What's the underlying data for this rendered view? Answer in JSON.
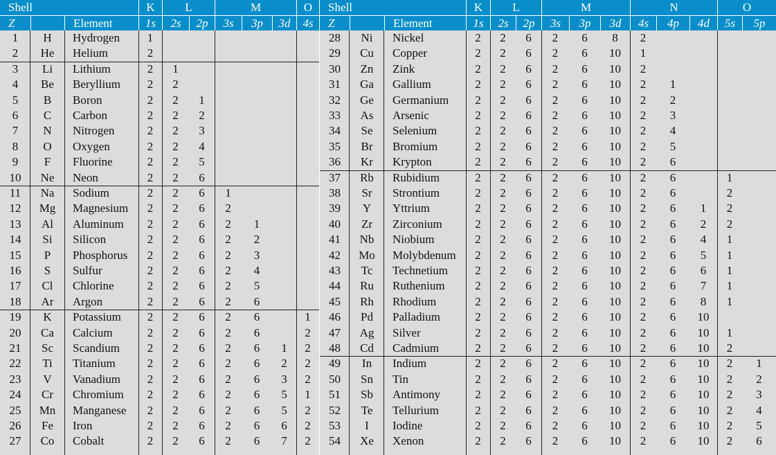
{
  "left": {
    "header_top": [
      "Shell",
      "K",
      "L",
      "M",
      "O"
    ],
    "header_sub": [
      "Z",
      "",
      "Element",
      "1s",
      "2s",
      "2p",
      "3s",
      "3p",
      "3d",
      "4s"
    ],
    "rows": [
      [
        "1",
        "H",
        "Hydrogen",
        "1",
        "",
        "",
        "",
        "",
        "",
        ""
      ],
      [
        "2",
        "He",
        "Helium",
        "2",
        "",
        "",
        "",
        "",
        "",
        ""
      ],
      [
        "3",
        "Li",
        "Lithium",
        "2",
        "1",
        "",
        "",
        "",
        "",
        ""
      ],
      [
        "4",
        "Be",
        "Beryllium",
        "2",
        "2",
        "",
        "",
        "",
        "",
        ""
      ],
      [
        "5",
        "B",
        "Boron",
        "2",
        "2",
        "1",
        "",
        "",
        "",
        ""
      ],
      [
        "6",
        "C",
        "Carbon",
        "2",
        "2",
        "2",
        "",
        "",
        "",
        ""
      ],
      [
        "7",
        "N",
        "Nitrogen",
        "2",
        "2",
        "3",
        "",
        "",
        "",
        ""
      ],
      [
        "8",
        "O",
        "Oxygen",
        "2",
        "2",
        "4",
        "",
        "",
        "",
        ""
      ],
      [
        "9",
        "F",
        "Fluorine",
        "2",
        "2",
        "5",
        "",
        "",
        "",
        ""
      ],
      [
        "10",
        "Ne",
        "Neon",
        "2",
        "2",
        "6",
        "",
        "",
        "",
        ""
      ],
      [
        "11",
        "Na",
        "Sodium",
        "2",
        "2",
        "6",
        "1",
        "",
        "",
        ""
      ],
      [
        "12",
        "Mg",
        "Magnesium",
        "2",
        "2",
        "6",
        "2",
        "",
        "",
        ""
      ],
      [
        "13",
        "Al",
        "Aluminum",
        "2",
        "2",
        "6",
        "2",
        "1",
        "",
        ""
      ],
      [
        "14",
        "Si",
        "Silicon",
        "2",
        "2",
        "6",
        "2",
        "2",
        "",
        ""
      ],
      [
        "15",
        "P",
        "Phosphorus",
        "2",
        "2",
        "6",
        "2",
        "3",
        "",
        ""
      ],
      [
        "16",
        "S",
        "Sulfur",
        "2",
        "2",
        "6",
        "2",
        "4",
        "",
        ""
      ],
      [
        "17",
        "Cl",
        "Chlorine",
        "2",
        "2",
        "6",
        "2",
        "5",
        "",
        ""
      ],
      [
        "18",
        "Ar",
        "Argon",
        "2",
        "2",
        "6",
        "2",
        "6",
        "",
        ""
      ],
      [
        "19",
        "K",
        "Potassium",
        "2",
        "2",
        "6",
        "2",
        "6",
        "",
        "1"
      ],
      [
        "20",
        "Ca",
        "Calcium",
        "2",
        "2",
        "6",
        "2",
        "6",
        "",
        "2"
      ],
      [
        "21",
        "Sc",
        "Scandium",
        "2",
        "2",
        "6",
        "2",
        "6",
        "1",
        "2"
      ],
      [
        "22",
        "Ti",
        "Titanium",
        "2",
        "2",
        "6",
        "2",
        "6",
        "2",
        "2"
      ],
      [
        "23",
        "V",
        "Vanadium",
        "2",
        "2",
        "6",
        "2",
        "6",
        "3",
        "2"
      ],
      [
        "24",
        "Cr",
        "Chromium",
        "2",
        "2",
        "6",
        "2",
        "6",
        "5",
        "1"
      ],
      [
        "25",
        "Mn",
        "Manganese",
        "2",
        "2",
        "6",
        "2",
        "6",
        "5",
        "2"
      ],
      [
        "26",
        "Fe",
        "Iron",
        "2",
        "2",
        "6",
        "2",
        "6",
        "6",
        "2"
      ],
      [
        "27",
        "Co",
        "Cobalt",
        "2",
        "2",
        "6",
        "2",
        "6",
        "7",
        "2"
      ]
    ]
  },
  "right": {
    "header_top": [
      "Shell",
      "K",
      "L",
      "M",
      "N",
      "O"
    ],
    "header_sub": [
      "Z",
      "",
      "Element",
      "1s",
      "2s",
      "2p",
      "3s",
      "3p",
      "3d",
      "4s",
      "4p",
      "4d",
      "5s",
      "5p"
    ],
    "rows": [
      [
        "28",
        "Ni",
        "Nickel",
        "2",
        "2",
        "6",
        "2",
        "6",
        "8",
        "2",
        "",
        "",
        "",
        ""
      ],
      [
        "29",
        "Cu",
        "Copper",
        "2",
        "2",
        "6",
        "2",
        "6",
        "10",
        "1",
        "",
        "",
        "",
        ""
      ],
      [
        "30",
        "Zn",
        "Zink",
        "2",
        "2",
        "6",
        "2",
        "6",
        "10",
        "2",
        "",
        "",
        "",
        ""
      ],
      [
        "31",
        "Ga",
        "Gallium",
        "2",
        "2",
        "6",
        "2",
        "6",
        "10",
        "2",
        "1",
        "",
        "",
        ""
      ],
      [
        "32",
        "Ge",
        "Germanium",
        "2",
        "2",
        "6",
        "2",
        "6",
        "10",
        "2",
        "2",
        "",
        "",
        ""
      ],
      [
        "33",
        "As",
        "Arsenic",
        "2",
        "2",
        "6",
        "2",
        "6",
        "10",
        "2",
        "3",
        "",
        "",
        ""
      ],
      [
        "34",
        "Se",
        "Selenium",
        "2",
        "2",
        "6",
        "2",
        "6",
        "10",
        "2",
        "4",
        "",
        "",
        ""
      ],
      [
        "35",
        "Br",
        "Bromium",
        "2",
        "2",
        "6",
        "2",
        "6",
        "10",
        "2",
        "5",
        "",
        "",
        ""
      ],
      [
        "36",
        "Kr",
        "Krypton",
        "2",
        "2",
        "6",
        "2",
        "6",
        "10",
        "2",
        "6",
        "",
        "",
        ""
      ],
      [
        "37",
        "Rb",
        "Rubidium",
        "2",
        "2",
        "6",
        "2",
        "6",
        "10",
        "2",
        "6",
        "",
        "1",
        ""
      ],
      [
        "38",
        "Sr",
        "Strontium",
        "2",
        "2",
        "6",
        "2",
        "6",
        "10",
        "2",
        "6",
        "",
        "2",
        ""
      ],
      [
        "39",
        "Y",
        "Yttrium",
        "2",
        "2",
        "6",
        "2",
        "6",
        "10",
        "2",
        "6",
        "1",
        "2",
        ""
      ],
      [
        "40",
        "Zr",
        "Zirconium",
        "2",
        "2",
        "6",
        "2",
        "6",
        "10",
        "2",
        "6",
        "2",
        "2",
        ""
      ],
      [
        "41",
        "Nb",
        "Niobium",
        "2",
        "2",
        "6",
        "2",
        "6",
        "10",
        "2",
        "6",
        "4",
        "1",
        ""
      ],
      [
        "42",
        "Mo",
        "Molybdenum",
        "2",
        "2",
        "6",
        "2",
        "6",
        "10",
        "2",
        "6",
        "5",
        "1",
        ""
      ],
      [
        "43",
        "Tc",
        "Technetium",
        "2",
        "2",
        "6",
        "2",
        "6",
        "10",
        "2",
        "6",
        "6",
        "1",
        ""
      ],
      [
        "44",
        "Ru",
        "Ruthenium",
        "2",
        "2",
        "6",
        "2",
        "6",
        "10",
        "2",
        "6",
        "7",
        "1",
        ""
      ],
      [
        "45",
        "Rh",
        "Rhodium",
        "2",
        "2",
        "6",
        "2",
        "6",
        "10",
        "2",
        "6",
        "8",
        "1",
        ""
      ],
      [
        "46",
        "Pd",
        "Palladium",
        "2",
        "2",
        "6",
        "2",
        "6",
        "10",
        "2",
        "6",
        "10",
        "",
        ""
      ],
      [
        "47",
        "Ag",
        "Silver",
        "2",
        "2",
        "6",
        "2",
        "6",
        "10",
        "2",
        "6",
        "10",
        "1",
        ""
      ],
      [
        "48",
        "Cd",
        "Cadmium",
        "2",
        "2",
        "6",
        "2",
        "6",
        "10",
        "2",
        "6",
        "10",
        "2",
        ""
      ],
      [
        "49",
        "In",
        "Indium",
        "2",
        "2",
        "6",
        "2",
        "6",
        "10",
        "2",
        "6",
        "10",
        "2",
        "1"
      ],
      [
        "50",
        "Sn",
        "Tin",
        "2",
        "2",
        "6",
        "2",
        "6",
        "10",
        "2",
        "6",
        "10",
        "2",
        "2"
      ],
      [
        "51",
        "Sb",
        "Antimony",
        "2",
        "2",
        "6",
        "2",
        "6",
        "10",
        "2",
        "6",
        "10",
        "2",
        "3"
      ],
      [
        "52",
        "Te",
        "Tellurium",
        "2",
        "2",
        "6",
        "2",
        "6",
        "10",
        "2",
        "6",
        "10",
        "2",
        "4"
      ],
      [
        "53",
        "I",
        "Iodine",
        "2",
        "2",
        "6",
        "2",
        "6",
        "10",
        "2",
        "6",
        "10",
        "2",
        "5"
      ],
      [
        "54",
        "Xe",
        "Xenon",
        "2",
        "2",
        "6",
        "2",
        "6",
        "10",
        "2",
        "6",
        "10",
        "2",
        "6"
      ]
    ]
  },
  "colors": {
    "header_bg": "#0a8ecb",
    "body_bg": "#dcdcdc",
    "header_text": "#ffffff"
  }
}
